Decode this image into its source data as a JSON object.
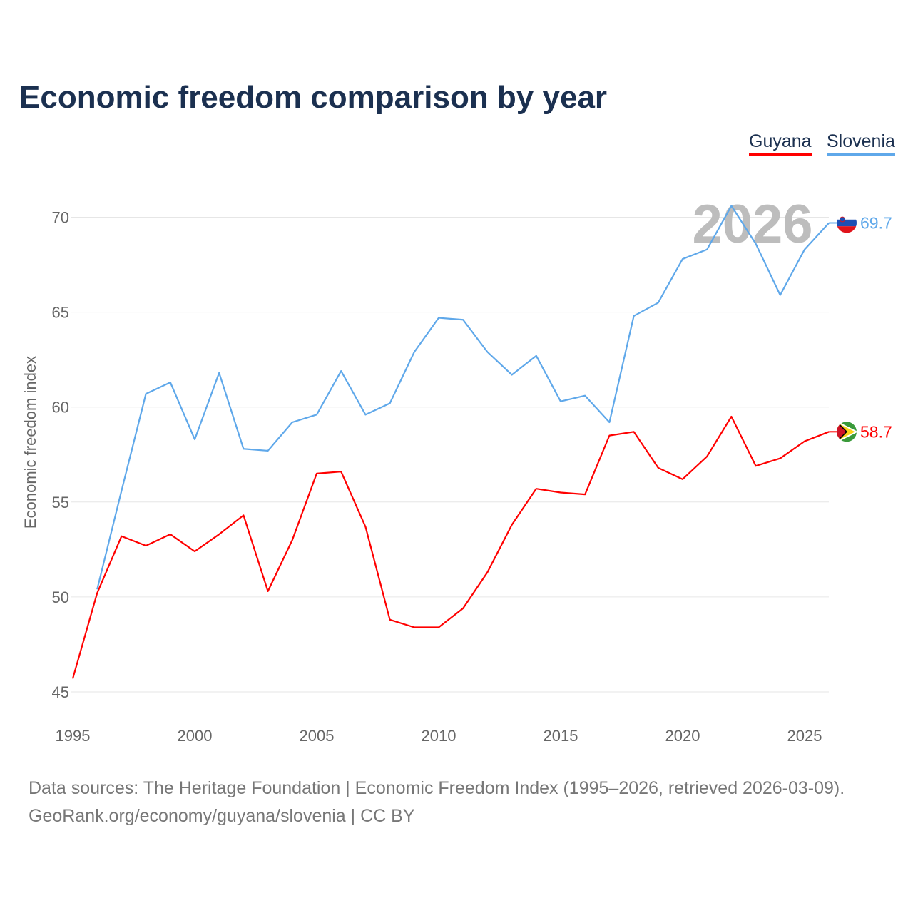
{
  "title": "Economic freedom comparison by year",
  "watermark_year": "2026",
  "footer": {
    "line1": "Data sources: The Heritage Foundation | Economic Freedom Index (1995–2026, retrieved 2026-03-09).",
    "line2": "GeoRank.org/economy/guyana/slovenia | CC BY"
  },
  "chart_data": {
    "type": "line",
    "title": "Economic freedom comparison by year",
    "xlabel": "",
    "ylabel": "Economic freedom index",
    "xlim": [
      1995,
      2026
    ],
    "ylim": [
      45,
      72
    ],
    "yticks": [
      45,
      50,
      55,
      60,
      65,
      70
    ],
    "xticks": [
      1995,
      2000,
      2005,
      2010,
      2015,
      2020,
      2025
    ],
    "grid": true,
    "legend_position": "top-right",
    "series": [
      {
        "name": "Guyana",
        "color": "#ff0000",
        "end_label": "58.7",
        "x": [
          1995,
          1996,
          1997,
          1998,
          1999,
          2000,
          2001,
          2002,
          2003,
          2004,
          2005,
          2006,
          2007,
          2008,
          2009,
          2010,
          2011,
          2012,
          2013,
          2014,
          2015,
          2016,
          2017,
          2018,
          2019,
          2020,
          2021,
          2022,
          2023,
          2024,
          2025,
          2026
        ],
        "values": [
          45.7,
          50.2,
          53.2,
          52.7,
          53.3,
          52.4,
          53.3,
          54.3,
          50.3,
          53.0,
          56.5,
          56.6,
          53.7,
          48.8,
          48.4,
          48.4,
          49.4,
          51.3,
          53.8,
          55.7,
          55.5,
          55.4,
          58.5,
          58.7,
          56.8,
          56.2,
          57.4,
          59.5,
          56.9,
          57.3,
          58.2,
          58.7
        ]
      },
      {
        "name": "Slovenia",
        "color": "#5fa8ea",
        "end_label": "69.7",
        "x": [
          1996,
          1997,
          1998,
          1999,
          2000,
          2001,
          2002,
          2003,
          2004,
          2005,
          2006,
          2007,
          2008,
          2009,
          2010,
          2011,
          2012,
          2013,
          2014,
          2015,
          2016,
          2017,
          2018,
          2019,
          2020,
          2021,
          2022,
          2023,
          2024,
          2025,
          2026
        ],
        "values": [
          50.4,
          55.6,
          60.7,
          61.3,
          58.3,
          61.8,
          57.8,
          57.7,
          59.2,
          59.6,
          61.9,
          59.6,
          60.2,
          62.9,
          64.7,
          64.6,
          62.9,
          61.7,
          62.7,
          60.3,
          60.6,
          59.2,
          64.8,
          65.5,
          67.8,
          68.3,
          70.6,
          68.6,
          65.9,
          68.3,
          69.7
        ]
      }
    ]
  }
}
